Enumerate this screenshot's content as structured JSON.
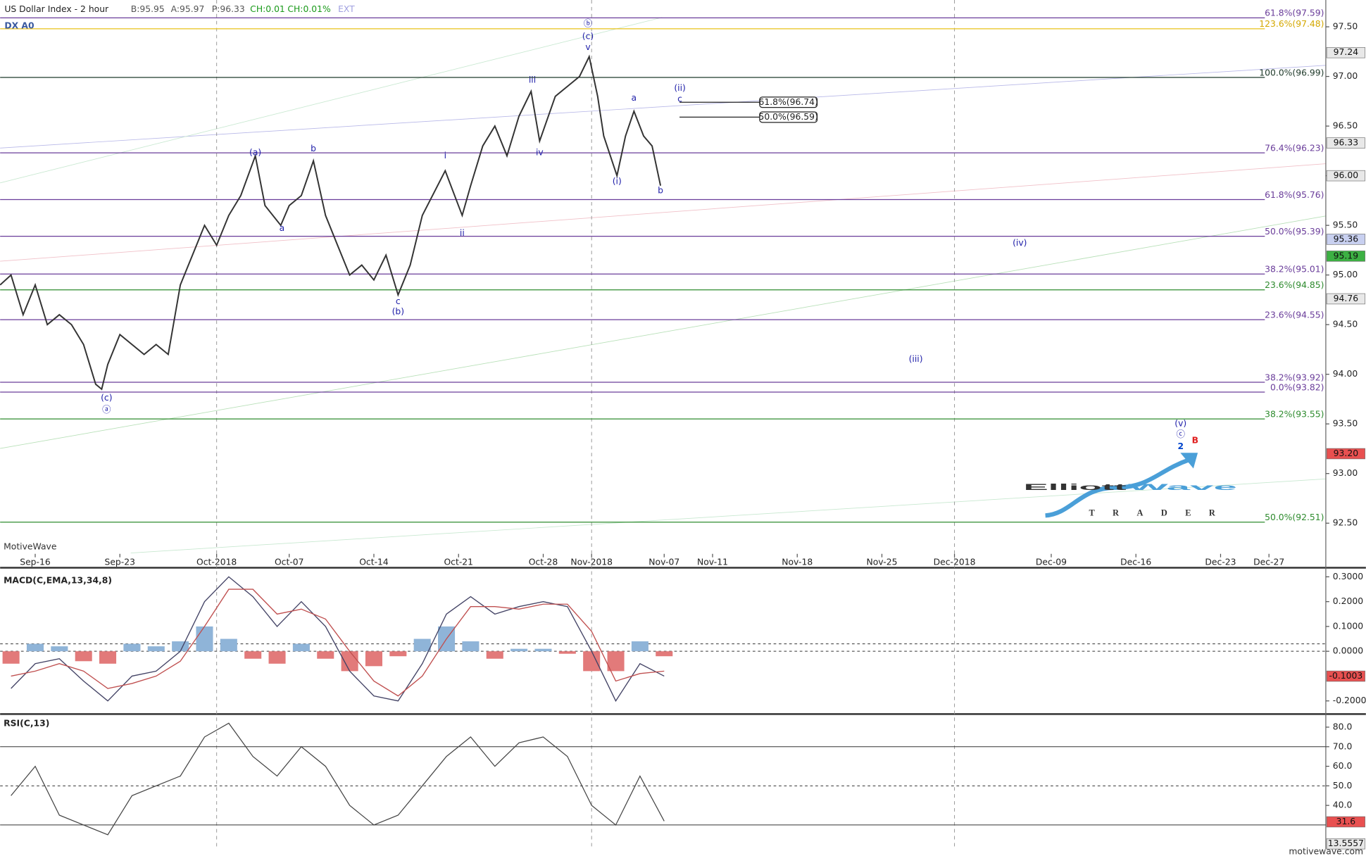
{
  "chart_data": [
    {
      "type": "line",
      "title": "US Dollar Index - 2 hour",
      "symbol": "DX A0",
      "quote": [
        "B:95.95",
        "A:95.97",
        "P:96.33",
        "CH:0.01",
        "CH:0.01%",
        "EXT"
      ],
      "watermark": "MotiveWave",
      "footer": "motivewave.com",
      "logo": [
        "Elliott",
        "Wave",
        "TRADER"
      ],
      "color": "#333333",
      "x": [
        -2.9,
        -2,
        -1,
        0,
        1,
        2,
        3,
        4,
        5,
        5.5,
        6,
        7,
        8,
        9,
        10,
        11,
        12,
        13,
        14,
        15,
        16,
        17,
        18.2,
        19,
        20.3,
        21,
        22,
        23,
        24,
        25,
        26,
        27,
        28,
        29,
        30,
        31,
        32,
        33.9,
        35.3,
        36,
        37,
        38,
        39,
        40,
        41,
        41.7,
        43,
        44,
        45,
        45.8,
        46.5,
        47,
        48.1,
        48.8,
        49.5,
        50.3,
        51,
        51.7
      ],
      "values": [
        94.9,
        95.0,
        94.6,
        94.9,
        94.5,
        94.6,
        94.5,
        94.3,
        93.9,
        93.85,
        94.1,
        94.4,
        94.3,
        94.2,
        94.3,
        94.2,
        94.9,
        95.2,
        95.5,
        95.3,
        95.6,
        95.8,
        96.2,
        95.7,
        95.5,
        95.7,
        95.8,
        96.15,
        95.6,
        95.3,
        95.0,
        95.1,
        94.95,
        95.2,
        94.8,
        95.1,
        95.6,
        96.05,
        95.6,
        95.9,
        96.3,
        96.5,
        96.2,
        96.6,
        96.85,
        96.35,
        96.8,
        96.9,
        97.0,
        97.2,
        96.8,
        96.4,
        96.0,
        96.4,
        96.65,
        96.4,
        96.3,
        95.9
      ],
      "xlim": [
        -2.9,
        106.7
      ],
      "xticks": [
        {
          "value": 0,
          "label": "Sep-16"
        },
        {
          "value": 7,
          "label": "Sep-23"
        },
        {
          "value": 15,
          "label": "Oct-2018"
        },
        {
          "value": 21,
          "label": "Oct-07"
        },
        {
          "value": 28,
          "label": "Oct-14"
        },
        {
          "value": 35,
          "label": "Oct-21"
        },
        {
          "value": 42,
          "label": "Oct-28"
        },
        {
          "value": 46,
          "label": "Nov-2018"
        },
        {
          "value": 52,
          "label": "Nov-07"
        },
        {
          "value": 56,
          "label": "Nov-11"
        },
        {
          "value": 63,
          "label": "Nov-18"
        },
        {
          "value": 70,
          "label": "Nov-25"
        },
        {
          "value": 76,
          "label": "Dec-2018"
        },
        {
          "value": 84,
          "label": "Dec-09"
        },
        {
          "value": 91,
          "label": "Dec-16"
        },
        {
          "value": 98,
          "label": "Dec-23"
        },
        {
          "value": 102,
          "label": "Dec-27"
        }
      ],
      "ylim": [
        92.2,
        97.77
      ],
      "yticks": [
        {
          "value": 97.5,
          "label": "97.50"
        },
        {
          "value": 97,
          "label": "97.00"
        },
        {
          "value": 96.5,
          "label": "96.50"
        },
        {
          "value": 96,
          "label": "96.00"
        },
        {
          "value": 95.5,
          "label": "95.50"
        },
        {
          "value": 95,
          "label": "95.00"
        },
        {
          "value": 94.5,
          "label": "94.50"
        },
        {
          "value": 94,
          "label": "94.00"
        },
        {
          "value": 93.5,
          "label": "93.50"
        },
        {
          "value": 93,
          "label": "93.00"
        },
        {
          "value": 92.5,
          "label": "92.50"
        }
      ],
      "levels": [
        {
          "label": "61.8%(97.59)",
          "value": 97.59,
          "color": "#6a3d9a"
        },
        {
          "label": "123.6%(97.48)",
          "value": 97.48,
          "color": "#e8c21a"
        },
        {
          "label": "100.0%(96.99)",
          "value": 96.99,
          "color": "#1f3a2a"
        },
        {
          "label": "76.4%(96.23)",
          "value": 96.23,
          "color": "#6a3d9a"
        },
        {
          "label": "61.8%(95.76)",
          "value": 95.76,
          "color": "#6a3d9a"
        },
        {
          "label": "50.0%(95.39)",
          "value": 95.39,
          "color": "#6a3d9a"
        },
        {
          "label": "38.2%(95.01)",
          "value": 95.01,
          "color": "#6a3d9a"
        },
        {
          "label": "23.6%(94.85)",
          "value": 94.85,
          "color": "#2e8b2e"
        },
        {
          "label": "23.6%(94.55)",
          "value": 94.55,
          "color": "#6a3d9a"
        },
        {
          "label": "38.2%(93.92)",
          "value": 93.92,
          "color": "#6a3d9a"
        },
        {
          "label": "0.0%(93.82)",
          "value": 93.82,
          "color": "#6a3d9a"
        },
        {
          "label": "38.2%(93.55)",
          "value": 93.55,
          "color": "#2e8b2e"
        },
        {
          "label": "50.0%(92.51)",
          "value": 92.51,
          "color": "#2e8b2e"
        }
      ],
      "targets": [
        {
          "label": "61.8%(96.74)",
          "value": 96.74
        },
        {
          "label": "50.0%(96.59)",
          "value": 96.59
        }
      ],
      "price_markers": [
        {
          "value": 97.24,
          "label": "97.24",
          "color": "#e8e8e8"
        },
        {
          "value": 96.33,
          "label": "96.33",
          "color": "#e8e8e8"
        },
        {
          "value": 96.0,
          "label": "96.00",
          "color": "#e8e8e8"
        },
        {
          "value": 95.36,
          "label": "95.36",
          "color": "#c8d0f0"
        },
        {
          "value": 95.19,
          "label": "95.19",
          "color": "#3cb043"
        },
        {
          "value": 94.76,
          "label": "94.76",
          "color": "#e8e8e8"
        },
        {
          "value": 93.2,
          "label": "93.20",
          "color": "#e85050"
        }
      ],
      "annotations": [
        {
          "text": "(c)",
          "x": 5.9,
          "y": 93.76,
          "color": "#2222aa"
        },
        {
          "text": "ⓐ",
          "x": 5.9,
          "y": 93.64,
          "color": "#2222aa"
        },
        {
          "text": "(a)",
          "x": 18.2,
          "y": 96.23,
          "color": "#2222aa"
        },
        {
          "text": "b",
          "x": 23.0,
          "y": 96.27,
          "color": "#2222aa"
        },
        {
          "text": "a",
          "x": 20.4,
          "y": 95.47,
          "color": "#2222aa"
        },
        {
          "text": "c",
          "x": 30.0,
          "y": 94.73,
          "color": "#2222aa"
        },
        {
          "text": "(b)",
          "x": 30.0,
          "y": 94.63,
          "color": "#2222aa"
        },
        {
          "text": "i",
          "x": 33.9,
          "y": 96.2,
          "color": "#2222aa"
        },
        {
          "text": "ii",
          "x": 35.3,
          "y": 95.42,
          "color": "#2222aa"
        },
        {
          "text": "iii",
          "x": 41.1,
          "y": 96.96,
          "color": "#2222aa"
        },
        {
          "text": "iv",
          "x": 41.7,
          "y": 96.23,
          "color": "#2222aa"
        },
        {
          "text": "ⓑ",
          "x": 45.7,
          "y": 97.53,
          "color": "#2222aa"
        },
        {
          "text": "(c)",
          "x": 45.7,
          "y": 97.4,
          "color": "#2222aa"
        },
        {
          "text": "v",
          "x": 45.7,
          "y": 97.29,
          "color": "#2222aa"
        },
        {
          "text": "(i)",
          "x": 48.1,
          "y": 95.94,
          "color": "#2222aa"
        },
        {
          "text": "a",
          "x": 49.5,
          "y": 96.78,
          "color": "#2222aa"
        },
        {
          "text": "b",
          "x": 51.7,
          "y": 95.85,
          "color": "#2222aa"
        },
        {
          "text": "(ii)",
          "x": 53.3,
          "y": 96.88,
          "color": "#2222aa"
        },
        {
          "text": "c",
          "x": 53.3,
          "y": 96.77,
          "color": "#2222aa"
        },
        {
          "text": "(iv)",
          "x": 81.4,
          "y": 95.32,
          "color": "#2222aa"
        },
        {
          "text": "(iii)",
          "x": 72.8,
          "y": 94.15,
          "color": "#2222aa"
        },
        {
          "text": "(v)",
          "x": 94.7,
          "y": 93.5,
          "color": "#2222aa"
        },
        {
          "text": "ⓒ",
          "x": 94.7,
          "y": 93.39,
          "color": "#2222aa"
        },
        {
          "text": "2",
          "x": 94.7,
          "y": 93.27,
          "color": "#0044cc"
        },
        {
          "text": "B",
          "x": 95.9,
          "y": 93.33,
          "color": "#e02020"
        }
      ]
    },
    {
      "type": "macd",
      "title": "MACD(C,EMA,13,34,8)",
      "x": [
        -2,
        0,
        2,
        4,
        6,
        8,
        10,
        12,
        14,
        16,
        18,
        20,
        22,
        24,
        26,
        28,
        30,
        32,
        34,
        36,
        38,
        40,
        42,
        44,
        46,
        48,
        50,
        52
      ],
      "series": [
        {
          "color": "#444466",
          "values": [
            -0.15,
            -0.05,
            -0.03,
            -0.12,
            -0.2,
            -0.1,
            -0.08,
            0.0,
            0.2,
            0.3,
            0.22,
            0.1,
            0.2,
            0.1,
            -0.08,
            -0.18,
            -0.2,
            -0.05,
            0.15,
            0.22,
            0.15,
            0.18,
            0.2,
            0.18,
            0.0,
            -0.2,
            -0.05,
            -0.1
          ]
        },
        {
          "color": "#c05050",
          "values": [
            -0.1,
            -0.08,
            -0.05,
            -0.08,
            -0.15,
            -0.13,
            -0.1,
            -0.04,
            0.1,
            0.25,
            0.25,
            0.15,
            0.17,
            0.13,
            0.0,
            -0.12,
            -0.18,
            -0.1,
            0.05,
            0.18,
            0.18,
            0.17,
            0.19,
            0.19,
            0.08,
            -0.12,
            -0.09,
            -0.08
          ]
        }
      ],
      "histogram": {
        "values": [
          -0.05,
          0.03,
          0.02,
          -0.04,
          -0.05,
          0.03,
          0.02,
          0.04,
          0.1,
          0.05,
          -0.03,
          -0.05,
          0.03,
          -0.03,
          -0.08,
          -0.06,
          -0.02,
          0.05,
          0.1,
          0.04,
          -0.03,
          0.01,
          0.01,
          -0.01,
          -0.08,
          -0.08,
          0.04,
          -0.02
        ],
        "colors": [
          "#8fb4d8",
          "#e27a7a"
        ]
      },
      "ylim": [
        -0.246,
        0.326
      ],
      "yticks": [
        {
          "value": 0.3,
          "label": "0.3000"
        },
        {
          "value": 0.2,
          "label": "0.2000"
        },
        {
          "value": 0.1,
          "label": "0.1000"
        },
        {
          "value": 0,
          "label": "0.0000"
        },
        {
          "value": -0.2,
          "label": "-0.2000"
        }
      ],
      "price_markers": [
        {
          "value": -0.1003,
          "label": "-0.1003",
          "color": "#e85050"
        }
      ]
    },
    {
      "type": "rsi",
      "title": "RSI(C,13)",
      "color": "#444444",
      "x": [
        -2,
        0,
        2,
        4,
        6,
        8,
        10,
        12,
        14,
        16,
        18,
        20,
        22,
        24,
        26,
        28,
        30,
        32,
        34,
        36,
        38,
        40,
        42,
        44,
        46,
        48,
        50,
        52
      ],
      "values": [
        45,
        60,
        35,
        30,
        25,
        45,
        50,
        55,
        75,
        82,
        65,
        55,
        70,
        60,
        40,
        30,
        35,
        50,
        65,
        75,
        60,
        72,
        75,
        65,
        40,
        30,
        55,
        32
      ],
      "levels": [
        70,
        50,
        30
      ],
      "ylim": [
        17.7,
        85.8
      ],
      "yticks": [
        {
          "value": 80,
          "label": "80.0"
        },
        {
          "value": 70,
          "label": "70.0"
        },
        {
          "value": 60,
          "label": "60.0"
        },
        {
          "value": 50,
          "label": "50.0"
        },
        {
          "value": 40,
          "label": "40.0"
        }
      ],
      "price_markers": [
        {
          "value": 31.6,
          "label": "31.6",
          "color": "#e85050"
        },
        {
          "value": 13.5557,
          "label": "13.5557",
          "color": "#e8e8e8"
        }
      ]
    }
  ]
}
